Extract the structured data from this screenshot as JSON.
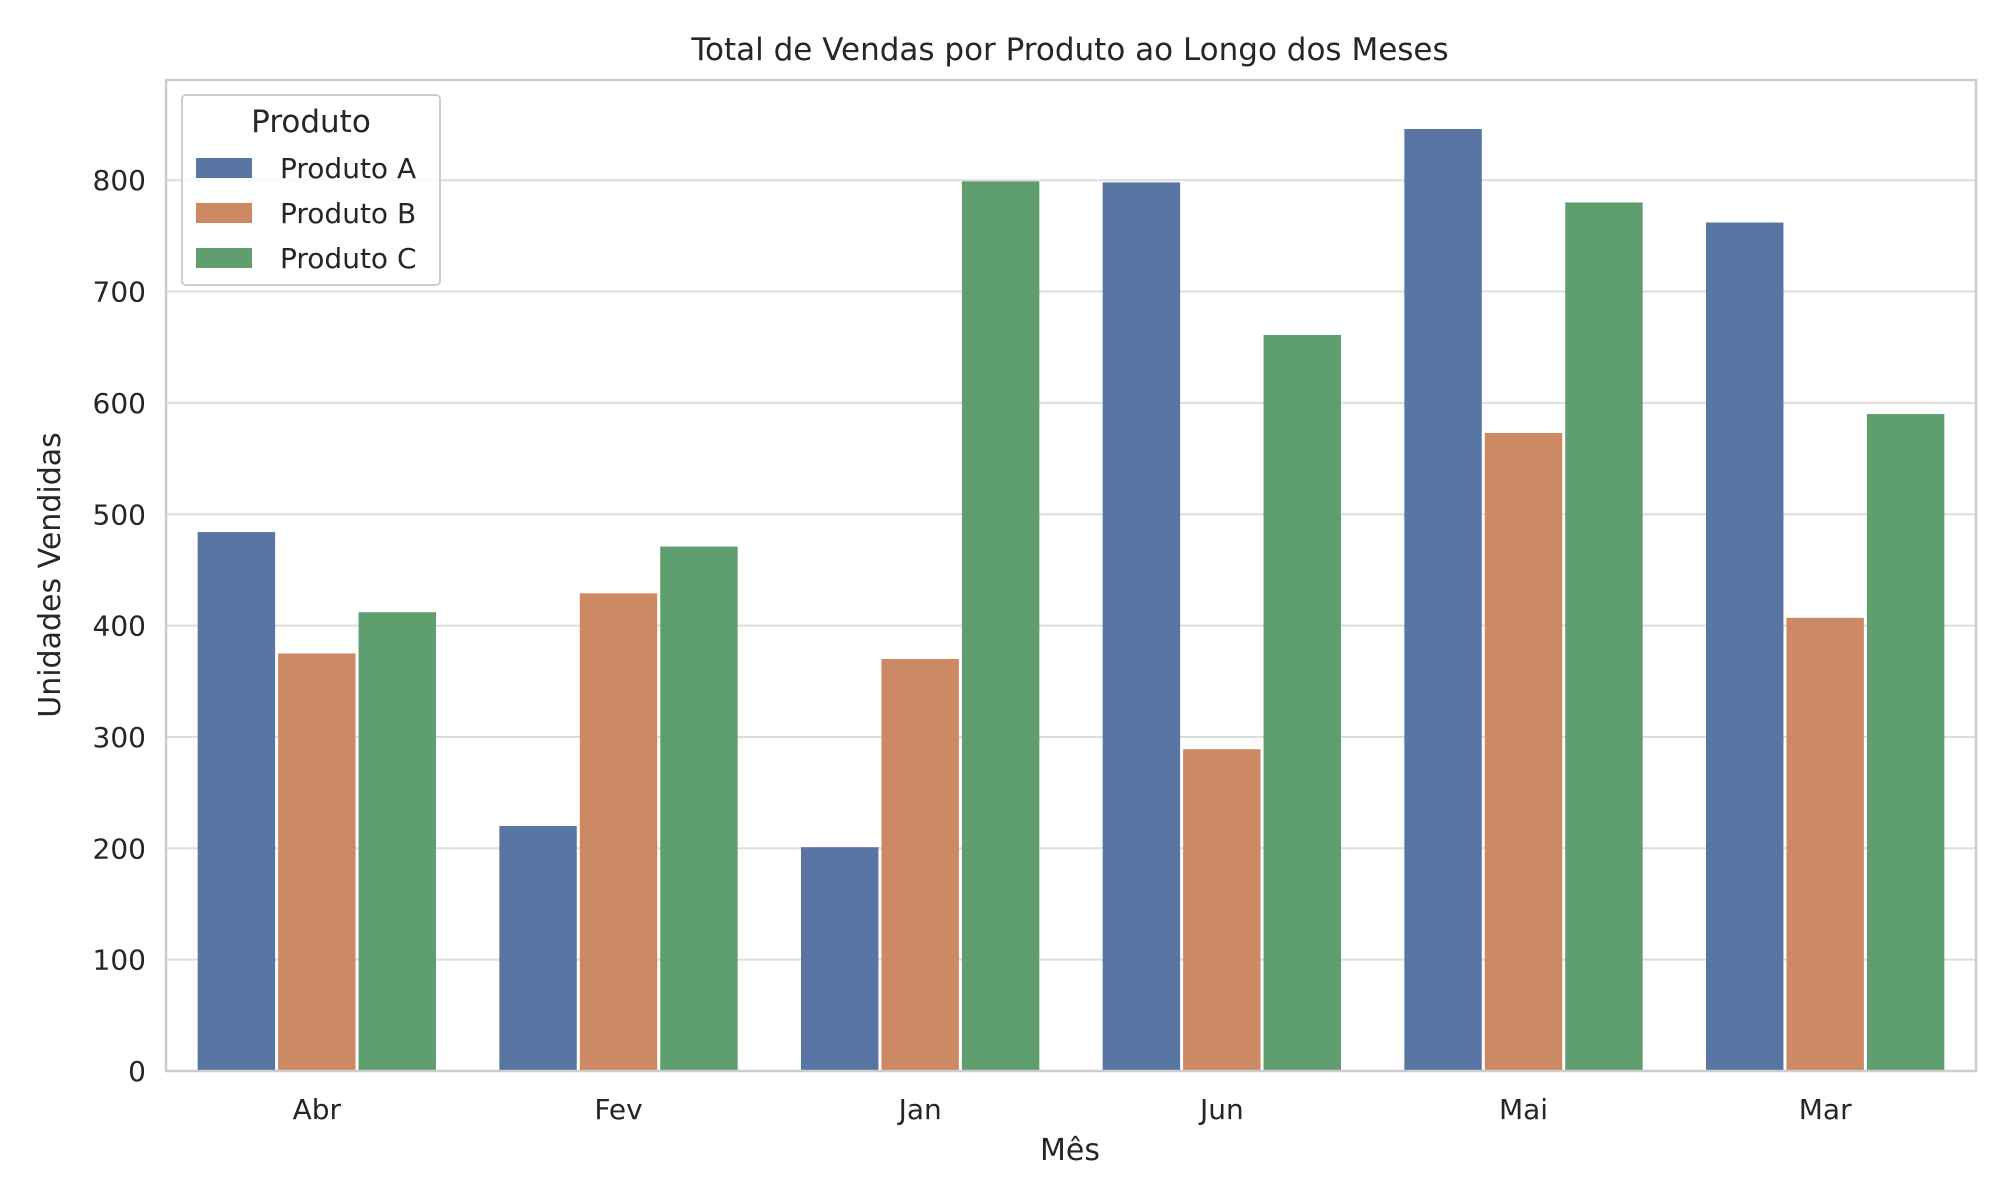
{
  "chart_data": {
    "type": "bar",
    "title": "Total de Vendas por Produto ao Longo dos Meses",
    "xlabel": "Mês",
    "ylabel": "Unidades Vendidas",
    "categories": [
      "Abr",
      "Fev",
      "Jan",
      "Jun",
      "Mai",
      "Mar"
    ],
    "series": [
      {
        "name": "Produto A",
        "color": "#5975a4",
        "values": [
          484,
          220,
          201,
          798,
          846,
          762
        ]
      },
      {
        "name": "Produto B",
        "color": "#cc8963",
        "values": [
          375,
          429,
          370,
          289,
          573,
          407
        ]
      },
      {
        "name": "Produto C",
        "color": "#5f9e6e",
        "values": [
          412,
          471,
          799,
          661,
          780,
          590
        ]
      }
    ],
    "ylim": [
      0,
      890
    ],
    "yticks": [
      0,
      100,
      200,
      300,
      400,
      500,
      600,
      700,
      800
    ],
    "grid": true,
    "legend": {
      "title": "Produto",
      "placement": "top-left"
    }
  }
}
